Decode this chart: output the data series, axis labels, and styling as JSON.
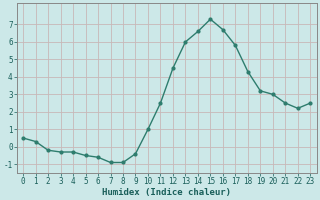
{
  "x": [
    0,
    1,
    2,
    3,
    4,
    5,
    6,
    7,
    8,
    9,
    10,
    11,
    12,
    13,
    14,
    15,
    16,
    17,
    18,
    19,
    20,
    21,
    22,
    23
  ],
  "y": [
    0.5,
    0.3,
    -0.2,
    -0.3,
    -0.3,
    -0.5,
    -0.6,
    -0.9,
    -0.9,
    -0.4,
    1.0,
    2.5,
    4.5,
    6.0,
    6.6,
    7.3,
    6.7,
    5.8,
    4.3,
    3.2,
    3.0,
    2.5,
    2.2,
    2.5
  ],
  "line_color": "#2e7d6e",
  "marker": "o",
  "marker_size": 2.0,
  "linewidth": 1.0,
  "bg_color": "#cce8e8",
  "grid_color": "#c8b8b8",
  "spine_color": "#888888",
  "xlabel": "Humidex (Indice chaleur)",
  "xlabel_fontsize": 6.5,
  "xlabel_color": "#1a5f5a",
  "tick_color": "#1a5f5a",
  "tick_fontsize": 5.5,
  "xlim": [
    -0.5,
    23.5
  ],
  "ylim": [
    -1.5,
    8.2
  ],
  "yticks": [
    -1,
    0,
    1,
    2,
    3,
    4,
    5,
    6,
    7
  ],
  "xticks": [
    0,
    1,
    2,
    3,
    4,
    5,
    6,
    7,
    8,
    9,
    10,
    11,
    12,
    13,
    14,
    15,
    16,
    17,
    18,
    19,
    20,
    21,
    22,
    23
  ]
}
